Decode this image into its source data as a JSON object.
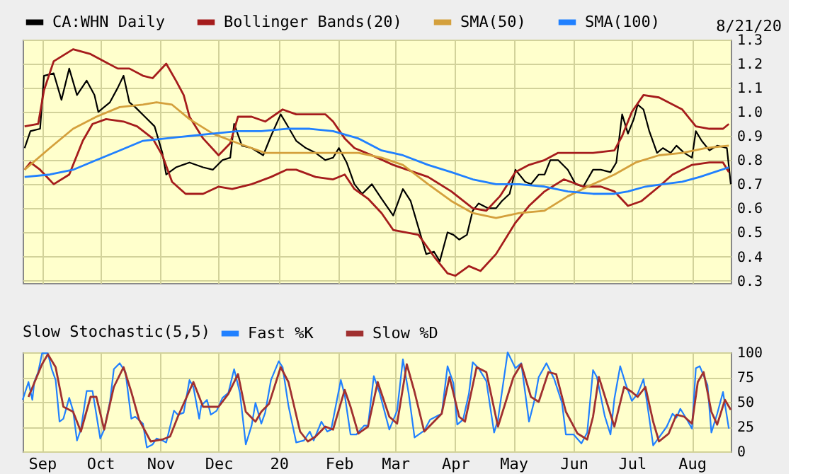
{
  "chart_data": [
    {
      "type": "line",
      "annotations": [
        "8/21/20"
      ],
      "legend": "top",
      "grid": true,
      "tick_labels": "y",
      "xlim": [
        "2019-08-22",
        "2020-08-21"
      ],
      "xticks": [
        {
          "value": "2019-09-01",
          "label": null
        },
        {
          "value": "2019-10-01",
          "label": null
        },
        {
          "value": "2019-11-01",
          "label": null
        },
        {
          "value": "2019-12-01",
          "label": null
        },
        {
          "value": "2020-01-01",
          "label": null
        },
        {
          "value": "2020-02-01",
          "label": null
        },
        {
          "value": "2020-03-01",
          "label": null
        },
        {
          "value": "2020-04-01",
          "label": null
        },
        {
          "value": "2020-05-01",
          "label": null
        },
        {
          "value": "2020-06-01",
          "label": null
        },
        {
          "value": "2020-07-01",
          "label": null
        },
        {
          "value": "2020-08-01",
          "label": null
        }
      ],
      "ylim": [
        0.29,
        1.3
      ],
      "yticks": [
        0.3,
        0.4,
        0.5,
        0.6,
        0.7,
        0.8,
        0.9,
        {
          "value": 1,
          "label": "1.0"
        },
        1.1,
        1.2,
        1.3
      ],
      "series": [
        {
          "name": "CA:WHN Daily",
          "color": "#000000",
          "x": [
            "2019-08-23",
            "2019-08-26",
            "2019-08-31",
            "2019-09-02",
            "2019-09-07",
            "2019-09-11",
            "2019-09-15",
            "2019-09-19",
            "2019-09-24",
            "2019-09-28",
            "2019-09-30",
            "2019-10-06",
            "2019-10-10",
            "2019-10-13",
            "2019-10-16",
            "2019-10-19",
            "2019-10-24",
            "2019-10-29",
            "2019-11-02",
            "2019-11-04",
            "2019-11-09",
            "2019-11-16",
            "2019-11-23",
            "2019-11-28",
            "2019-12-03",
            "2019-12-07",
            "2019-12-09",
            "2019-12-13",
            "2019-12-18",
            "2019-12-24",
            "2019-12-28",
            "2020-01-02",
            "2020-01-05",
            "2020-01-10",
            "2020-01-15",
            "2020-01-20",
            "2020-01-25",
            "2020-01-29",
            "2020-02-01",
            "2020-02-05",
            "2020-02-09",
            "2020-02-13",
            "2020-02-18",
            "2020-02-23",
            "2020-02-29",
            "2020-03-05",
            "2020-03-09",
            "2020-03-13",
            "2020-03-17",
            "2020-03-21",
            "2020-03-24",
            "2020-03-28",
            "2020-03-31",
            "2020-04-03",
            "2020-04-07",
            "2020-04-10",
            "2020-04-13",
            "2020-04-18",
            "2020-04-22",
            "2020-04-25",
            "2020-04-29",
            "2020-05-02",
            "2020-05-07",
            "2020-05-10",
            "2020-05-14",
            "2020-05-17",
            "2020-05-20",
            "2020-05-24",
            "2020-05-29",
            "2020-06-02",
            "2020-06-06",
            "2020-06-11",
            "2020-06-15",
            "2020-06-20",
            "2020-06-23",
            "2020-06-26",
            "2020-06-29",
            "2020-07-02",
            "2020-07-04",
            "2020-07-07",
            "2020-07-10",
            "2020-07-14",
            "2020-07-17",
            "2020-07-21",
            "2020-07-24",
            "2020-07-28",
            "2020-08-01",
            "2020-08-03",
            "2020-08-06",
            "2020-08-10",
            "2020-08-14",
            "2020-08-19",
            "2020-08-21"
          ],
          "values": [
            0.85,
            0.92,
            0.93,
            1.15,
            1.16,
            1.05,
            1.18,
            1.07,
            1.13,
            1.07,
            1.0,
            1.04,
            1.1,
            1.15,
            1.04,
            1.02,
            0.98,
            0.94,
            0.83,
            0.74,
            0.77,
            0.79,
            0.77,
            0.76,
            0.8,
            0.81,
            0.95,
            0.86,
            0.85,
            0.82,
            0.9,
            0.99,
            0.95,
            0.88,
            0.85,
            0.83,
            0.8,
            0.81,
            0.85,
            0.79,
            0.7,
            0.66,
            0.7,
            0.64,
            0.57,
            0.68,
            0.63,
            0.52,
            0.41,
            0.42,
            0.38,
            0.5,
            0.49,
            0.47,
            0.49,
            0.59,
            0.62,
            0.6,
            0.6,
            0.63,
            0.66,
            0.76,
            0.71,
            0.7,
            0.74,
            0.74,
            0.8,
            0.8,
            0.76,
            0.7,
            0.69,
            0.76,
            0.76,
            0.75,
            0.79,
            0.99,
            0.91,
            0.97,
            1.03,
            1.01,
            0.92,
            0.83,
            0.85,
            0.83,
            0.86,
            0.83,
            0.81,
            0.92,
            0.88,
            0.84,
            0.86,
            0.85,
            0.7
          ]
        },
        {
          "name": "Bollinger Bands(20)",
          "color": "#a51c1c",
          "x": [
            "2019-08-23",
            "2019-08-30",
            "2019-09-02",
            "2019-09-07",
            "2019-09-17",
            "2019-09-26",
            "2019-10-03",
            "2019-10-10",
            "2019-10-16",
            "2019-10-23",
            "2019-10-28",
            "2019-11-04",
            "2019-11-09",
            "2019-11-13",
            "2019-11-16",
            "2019-11-23",
            "2019-12-01",
            "2019-12-07",
            "2019-12-11",
            "2019-12-18",
            "2019-12-25",
            "2020-01-03",
            "2020-01-10",
            "2020-01-25",
            "2020-01-29",
            "2020-02-04",
            "2020-02-09",
            "2020-02-18",
            "2020-02-29",
            "2020-03-18",
            "2020-03-30",
            "2020-04-10",
            "2020-04-17",
            "2020-04-24",
            "2020-05-02",
            "2020-05-09",
            "2020-05-17",
            "2020-05-24",
            "2020-06-11",
            "2020-06-22",
            "2020-06-26",
            "2020-07-01",
            "2020-07-07",
            "2020-07-15",
            "2020-07-27",
            "2020-08-03",
            "2020-08-10",
            "2020-08-17",
            "2020-08-20"
          ],
          "values": [
            0.94,
            0.95,
            1.09,
            1.21,
            1.26,
            1.24,
            1.21,
            1.18,
            1.18,
            1.15,
            1.14,
            1.2,
            1.13,
            1.07,
            0.98,
            0.89,
            0.82,
            0.87,
            0.98,
            0.98,
            0.96,
            1.01,
            0.99,
            0.99,
            0.96,
            0.89,
            0.85,
            0.82,
            0.78,
            0.73,
            0.67,
            0.6,
            0.59,
            0.65,
            0.75,
            0.78,
            0.8,
            0.83,
            0.83,
            0.84,
            0.9,
            1.0,
            1.07,
            1.06,
            1.01,
            0.94,
            0.93,
            0.93,
            0.95
          ]
        },
        {
          "color": "#a51c1c",
          "x": [
            "2019-08-23",
            "2019-08-26",
            "2019-08-31",
            "2019-09-07",
            "2019-09-15",
            "2019-09-22",
            "2019-09-27",
            "2019-10-04",
            "2019-10-13",
            "2019-10-20",
            "2019-10-28",
            "2019-11-02",
            "2019-11-07",
            "2019-11-14",
            "2019-11-23",
            "2019-12-01",
            "2019-12-08",
            "2019-12-18",
            "2019-12-28",
            "2020-01-05",
            "2020-01-10",
            "2020-01-20",
            "2020-01-29",
            "2020-02-04",
            "2020-02-09",
            "2020-02-16",
            "2020-02-23",
            "2020-02-29",
            "2020-03-13",
            "2020-03-21",
            "2020-03-28",
            "2020-04-01",
            "2020-04-08",
            "2020-04-14",
            "2020-04-22",
            "2020-05-02",
            "2020-05-09",
            "2020-05-17",
            "2020-05-27",
            "2020-06-06",
            "2020-06-15",
            "2020-06-22",
            "2020-06-29",
            "2020-07-06",
            "2020-07-15",
            "2020-07-22",
            "2020-08-01",
            "2020-08-10",
            "2020-08-17",
            "2020-08-20"
          ],
          "values": [
            0.76,
            0.79,
            0.76,
            0.7,
            0.74,
            0.88,
            0.95,
            0.97,
            0.96,
            0.94,
            0.89,
            0.82,
            0.71,
            0.66,
            0.66,
            0.69,
            0.68,
            0.7,
            0.73,
            0.76,
            0.76,
            0.73,
            0.72,
            0.74,
            0.68,
            0.64,
            0.58,
            0.51,
            0.49,
            0.4,
            0.33,
            0.32,
            0.36,
            0.34,
            0.41,
            0.54,
            0.61,
            0.67,
            0.72,
            0.69,
            0.69,
            0.67,
            0.61,
            0.63,
            0.69,
            0.74,
            0.78,
            0.79,
            0.79,
            0.75
          ]
        },
        {
          "name": "SMA(50)",
          "color": "#d4a03c",
          "x": [
            "2019-08-23",
            "2019-09-05",
            "2019-09-17",
            "2019-09-29",
            "2019-10-11",
            "2019-10-23",
            "2019-10-30",
            "2019-11-07",
            "2019-11-16",
            "2019-11-28",
            "2019-12-11",
            "2019-12-25",
            "2020-01-10",
            "2020-01-25",
            "2020-02-11",
            "2020-02-23",
            "2020-03-05",
            "2020-03-18",
            "2020-03-30",
            "2020-04-10",
            "2020-04-22",
            "2020-05-04",
            "2020-05-17",
            "2020-05-29",
            "2020-06-11",
            "2020-06-22",
            "2020-07-03",
            "2020-07-15",
            "2020-07-27",
            "2020-08-08",
            "2020-08-20"
          ],
          "values": [
            0.76,
            0.85,
            0.93,
            0.98,
            1.02,
            1.03,
            1.04,
            1.03,
            0.97,
            0.91,
            0.87,
            0.83,
            0.83,
            0.83,
            0.83,
            0.81,
            0.78,
            0.7,
            0.63,
            0.58,
            0.56,
            0.58,
            0.59,
            0.65,
            0.7,
            0.74,
            0.79,
            0.82,
            0.83,
            0.85,
            0.86
          ]
        },
        {
          "name": "SMA(100)",
          "color": "#2080ff",
          "x": [
            "2019-08-23",
            "2019-09-05",
            "2019-09-17",
            "2019-09-29",
            "2019-10-11",
            "2019-10-23",
            "2019-11-04",
            "2019-11-16",
            "2019-11-28",
            "2019-12-11",
            "2019-12-23",
            "2020-01-05",
            "2020-01-17",
            "2020-01-29",
            "2020-02-11",
            "2020-02-23",
            "2020-03-05",
            "2020-03-18",
            "2020-03-30",
            "2020-04-10",
            "2020-04-22",
            "2020-05-04",
            "2020-05-17",
            "2020-05-29",
            "2020-06-11",
            "2020-06-22",
            "2020-06-29",
            "2020-07-08",
            "2020-07-17",
            "2020-07-27",
            "2020-08-05",
            "2020-08-20"
          ],
          "values": [
            0.73,
            0.74,
            0.76,
            0.8,
            0.84,
            0.88,
            0.89,
            0.9,
            0.91,
            0.92,
            0.92,
            0.93,
            0.93,
            0.92,
            0.89,
            0.84,
            0.82,
            0.78,
            0.75,
            0.72,
            0.7,
            0.7,
            0.69,
            0.67,
            0.66,
            0.66,
            0.67,
            0.69,
            0.7,
            0.71,
            0.73,
            0.77
          ]
        }
      ]
    },
    {
      "type": "line",
      "legend_title": "Slow Stochastic(5,5)",
      "legend": "top",
      "grid": true,
      "xlim": [
        "2019-08-22",
        "2020-08-21"
      ],
      "xticks": [
        {
          "value": "2019-09-01",
          "label": "Sep"
        },
        {
          "value": "2019-10-01",
          "label": "Oct"
        },
        {
          "value": "2019-11-01",
          "label": "Nov"
        },
        {
          "value": "2019-12-01",
          "label": "Dec"
        },
        {
          "value": "2020-01-01",
          "label": "20"
        },
        {
          "value": "2020-02-01",
          "label": "Feb"
        },
        {
          "value": "2020-03-01",
          "label": "Mar"
        },
        {
          "value": "2020-04-01",
          "label": "Apr"
        },
        {
          "value": "2020-05-01",
          "label": "May"
        },
        {
          "value": "2020-06-01",
          "label": "Jun"
        },
        {
          "value": "2020-07-01",
          "label": "Jul"
        },
        {
          "value": "2020-08-01",
          "label": "Aug"
        }
      ],
      "ylim": [
        0,
        100
      ],
      "yticks": [
        0,
        25,
        50,
        75,
        100
      ],
      "series": [
        {
          "name": "Fast %K",
          "color": "#2080ff",
          "x": [
            "2019-08-22",
            "2019-08-25",
            "2019-08-27",
            "2019-08-28",
            "2019-08-30",
            "2019-09-01",
            "2019-09-04",
            "2019-09-06",
            "2019-09-08",
            "2019-09-10",
            "2019-09-12",
            "2019-09-15",
            "2019-09-17",
            "2019-09-19",
            "2019-09-21",
            "2019-09-24",
            "2019-09-27",
            "2019-10-01",
            "2019-10-03",
            "2019-10-06",
            "2019-10-08",
            "2019-10-11",
            "2019-10-14",
            "2019-10-17",
            "2019-10-19",
            "2019-10-23",
            "2019-10-25",
            "2019-10-28",
            "2019-10-30",
            "2019-11-02",
            "2019-11-04",
            "2019-11-08",
            "2019-11-10",
            "2019-11-13",
            "2019-11-16",
            "2019-11-18",
            "2019-11-21",
            "2019-11-22",
            "2019-11-25",
            "2019-11-27",
            "2019-11-30",
            "2019-12-03",
            "2019-12-06",
            "2019-12-09",
            "2019-12-12",
            "2019-12-15",
            "2019-12-18",
            "2019-12-20",
            "2019-12-23",
            "2019-12-25",
            "2019-12-28",
            "2020-01-01",
            "2020-01-03",
            "2020-01-06",
            "2020-01-10",
            "2020-01-14",
            "2020-01-17",
            "2020-01-19",
            "2020-01-23",
            "2020-01-26",
            "2020-01-28",
            "2020-02-02",
            "2020-02-04",
            "2020-02-07",
            "2020-02-10",
            "2020-02-14",
            "2020-02-16",
            "2020-02-19",
            "2020-02-22",
            "2020-02-27",
            "2020-03-02",
            "2020-03-05",
            "2020-03-08",
            "2020-03-11",
            "2020-03-16",
            "2020-03-19",
            "2020-03-23",
            "2020-03-25",
            "2020-03-28",
            "2020-03-31",
            "2020-04-02",
            "2020-04-05",
            "2020-04-08",
            "2020-04-10",
            "2020-04-13",
            "2020-04-17",
            "2020-04-21",
            "2020-04-23",
            "2020-04-28",
            "2020-05-02",
            "2020-05-05",
            "2020-05-09",
            "2020-05-12",
            "2020-05-14",
            "2020-05-18",
            "2020-05-22",
            "2020-05-26",
            "2020-05-28",
            "2020-06-01",
            "2020-06-05",
            "2020-06-08",
            "2020-06-11",
            "2020-06-13",
            "2020-06-17",
            "2020-06-20",
            "2020-06-22",
            "2020-06-25",
            "2020-06-28",
            "2020-07-01",
            "2020-07-04",
            "2020-07-07",
            "2020-07-09",
            "2020-07-12",
            "2020-07-15",
            "2020-07-19",
            "2020-07-22",
            "2020-07-24",
            "2020-07-26",
            "2020-07-30",
            "2020-08-01",
            "2020-08-03",
            "2020-08-05",
            "2020-08-09",
            "2020-08-11",
            "2020-08-14",
            "2020-08-17",
            "2020-08-20"
          ],
          "values": [
            52,
            70,
            52,
            70,
            80,
            99,
            99,
            83,
            72,
            30,
            33,
            54,
            41,
            11,
            22,
            61,
            61,
            13,
            22,
            50,
            83,
            89,
            80,
            33,
            35,
            28,
            4,
            7,
            13,
            11,
            9,
            41,
            37,
            39,
            72,
            65,
            33,
            46,
            52,
            37,
            41,
            54,
            59,
            83,
            59,
            7,
            26,
            49,
            28,
            39,
            72,
            91,
            85,
            46,
            9,
            11,
            20,
            11,
            30,
            20,
            22,
            72,
            57,
            17,
            17,
            26,
            26,
            76,
            59,
            22,
            41,
            93,
            58,
            14,
            21,
            32,
            36,
            38,
            86,
            69,
            27,
            32,
            58,
            90,
            84,
            71,
            19,
            32,
            100,
            84,
            89,
            30,
            53,
            75,
            89,
            73,
            49,
            17,
            17,
            8,
            19,
            82,
            75,
            36,
            17,
            53,
            86,
            67,
            51,
            58,
            73,
            47,
            6,
            14,
            25,
            38,
            34,
            43,
            30,
            23,
            84,
            86,
            67,
            19,
            38,
            60,
            23
          ]
        },
        {
          "name": "Slow %D",
          "color": "#a03030",
          "x": [
            "2019-08-25",
            "2019-09-01",
            "2019-09-04",
            "2019-09-08",
            "2019-09-12",
            "2019-09-17",
            "2019-09-21",
            "2019-09-26",
            "2019-09-29",
            "2019-10-03",
            "2019-10-08",
            "2019-10-13",
            "2019-10-17",
            "2019-10-21",
            "2019-10-27",
            "2019-11-02",
            "2019-11-06",
            "2019-11-10",
            "2019-11-18",
            "2019-11-23",
            "2019-11-27",
            "2019-12-01",
            "2019-12-06",
            "2019-12-11",
            "2019-12-15",
            "2019-12-20",
            "2019-12-23",
            "2019-12-27",
            "2020-01-02",
            "2020-01-06",
            "2020-01-12",
            "2020-01-16",
            "2020-01-20",
            "2020-01-25",
            "2020-01-29",
            "2020-02-04",
            "2020-02-07",
            "2020-02-11",
            "2020-02-16",
            "2020-02-21",
            "2020-02-27",
            "2020-03-02",
            "2020-03-07",
            "2020-03-11",
            "2020-03-16",
            "2020-03-20",
            "2020-03-25",
            "2020-03-29",
            "2020-04-03",
            "2020-04-06",
            "2020-04-12",
            "2020-04-17",
            "2020-04-23",
            "2020-05-01",
            "2020-05-05",
            "2020-05-10",
            "2020-05-14",
            "2020-05-19",
            "2020-05-23",
            "2020-05-28",
            "2020-06-03",
            "2020-06-08",
            "2020-06-11",
            "2020-06-14",
            "2020-06-18",
            "2020-06-22",
            "2020-06-27",
            "2020-07-01",
            "2020-07-04",
            "2020-07-08",
            "2020-07-12",
            "2020-07-15",
            "2020-07-20",
            "2020-07-24",
            "2020-07-28",
            "2020-08-01",
            "2020-08-04",
            "2020-08-07",
            "2020-08-11",
            "2020-08-14",
            "2020-08-18",
            "2020-08-21"
          ],
          "values": [
            55,
            88,
            98,
            85,
            45,
            40,
            20,
            55,
            55,
            22,
            65,
            85,
            60,
            32,
            10,
            12,
            15,
            35,
            70,
            45,
            45,
            45,
            58,
            78,
            40,
            30,
            40,
            48,
            85,
            70,
            20,
            10,
            15,
            25,
            22,
            62,
            45,
            18,
            25,
            70,
            35,
            28,
            88,
            60,
            20,
            28,
            38,
            75,
            35,
            30,
            85,
            80,
            25,
            75,
            88,
            55,
            50,
            80,
            78,
            40,
            18,
            12,
            35,
            75,
            50,
            25,
            65,
            60,
            55,
            65,
            30,
            10,
            18,
            37,
            35,
            28,
            70,
            80,
            40,
            27,
            52,
            42
          ]
        }
      ]
    }
  ]
}
